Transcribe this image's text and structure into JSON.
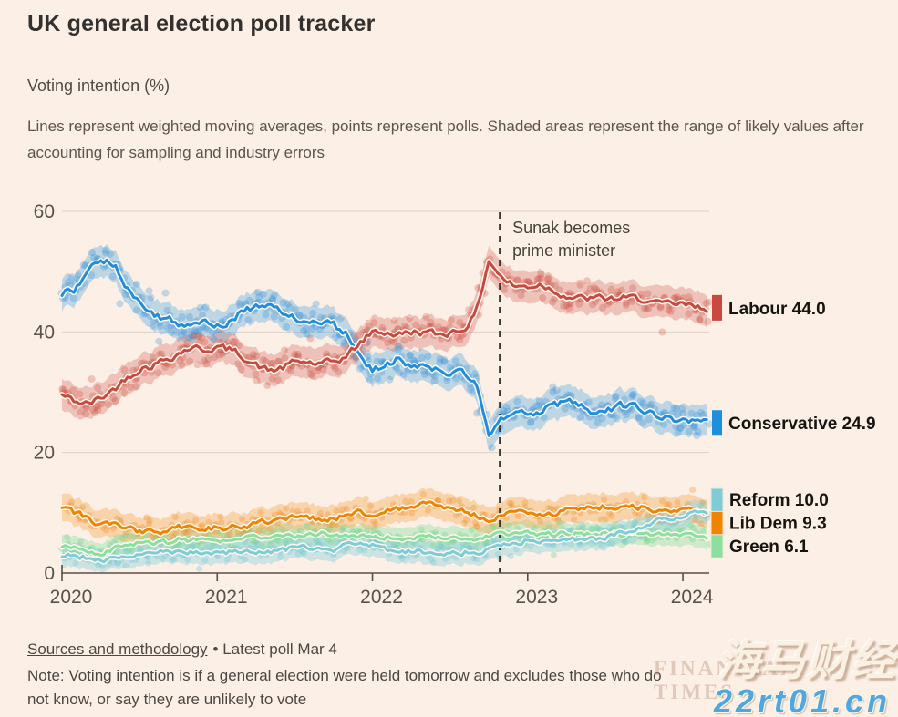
{
  "header": {
    "title": "UK general election poll tracker",
    "subtitle": "Voting intention (%)",
    "description": "Lines represent weighted moving averages, points represent polls. Shaded areas represent the range of likely values after accounting for sampling and industry errors"
  },
  "chart": {
    "background": "#fcefe5",
    "grid_color": "#ddd2c7",
    "axis_color": "#56504a",
    "text_color": "#57524c",
    "legend_text_color": "#16140f",
    "ylim": [
      0,
      60
    ],
    "xlim": [
      2020.0,
      2024.17
    ],
    "yticks": [
      0,
      20,
      40,
      60
    ],
    "xticks": [
      2020,
      2021,
      2022,
      2023,
      2024
    ],
    "annotation": {
      "x": 2022.82,
      "line1": "Sunak becomes",
      "line2": "prime minister",
      "line_color": "#3a3733",
      "text_color": "#474239"
    }
  },
  "chart_data": {
    "type": "line",
    "title": "UK general election poll tracker",
    "subtitle": "Voting intention (%)",
    "xlabel": "",
    "ylabel": "Voting intention (%)",
    "x": [
      2020.0,
      2020.083,
      2020.167,
      2020.25,
      2020.333,
      2020.417,
      2020.5,
      2020.583,
      2020.667,
      2020.75,
      2020.833,
      2020.917,
      2021.0,
      2021.083,
      2021.167,
      2021.25,
      2021.333,
      2021.417,
      2021.5,
      2021.583,
      2021.667,
      2021.75,
      2021.833,
      2021.917,
      2022.0,
      2022.083,
      2022.167,
      2022.25,
      2022.333,
      2022.417,
      2022.5,
      2022.583,
      2022.667,
      2022.75,
      2022.833,
      2022.917,
      2023.0,
      2023.083,
      2023.167,
      2023.25,
      2023.333,
      2023.417,
      2023.5,
      2023.583,
      2023.667,
      2023.75,
      2023.833,
      2023.917,
      2024.0,
      2024.083,
      2024.167
    ],
    "series": [
      {
        "name": "Labour",
        "label": "Labour 44.0",
        "latest": 44.0,
        "color": "#c9493e",
        "band_color": "rgba(205,90,78,0.30)",
        "dot_color": "rgba(203,77,66,0.28)",
        "band": 2.6,
        "wiggle": 0.5,
        "spread": 2.0,
        "dot_r": 4,
        "values": [
          29.5,
          28.5,
          28,
          29,
          30.5,
          32.5,
          34,
          34.5,
          35.5,
          36.5,
          37.5,
          37,
          37.5,
          37,
          36,
          34.5,
          33.5,
          34,
          35,
          35,
          34.5,
          35,
          36,
          38,
          40,
          40,
          39.5,
          40,
          40,
          39.5,
          40,
          40.5,
          43,
          52,
          49,
          47.5,
          47.5,
          48,
          47,
          46,
          45.5,
          45.5,
          45.5,
          45.5,
          45.5,
          45.5,
          44.5,
          44.5,
          44.5,
          44,
          44
        ]
      },
      {
        "name": "Conservative",
        "label": "Conservative 24.9",
        "latest": 24.9,
        "color": "#1e8fdf",
        "band_color": "rgba(90,170,225,0.38)",
        "dot_color": "rgba(60,150,215,0.30)",
        "band": 2.6,
        "wiggle": 0.5,
        "spread": 2.0,
        "dot_r": 4,
        "values": [
          46.5,
          47,
          50,
          52.5,
          51.5,
          47.5,
          44.5,
          43,
          42,
          41.5,
          41.5,
          42,
          41,
          42,
          43.5,
          44,
          44,
          43.5,
          42.5,
          42,
          41.5,
          41,
          39.5,
          36.5,
          33.5,
          34.5,
          35.5,
          34.5,
          34.5,
          34,
          33.5,
          33.5,
          31,
          22.5,
          25.5,
          26,
          26.5,
          27,
          27.5,
          28.5,
          28,
          27,
          26.5,
          27.5,
          28,
          26.5,
          26,
          25.5,
          25.5,
          25,
          24.9
        ]
      },
      {
        "name": "Reform",
        "label": "Reform 10.0",
        "latest": 10.0,
        "color": "#7fccd9",
        "band_color": "rgba(140,210,222,0.42)",
        "dot_color": "rgba(120,200,215,0.35)",
        "band": 1.9,
        "wiggle": 0.35,
        "spread": 1.3,
        "dot_r": 3.5,
        "values": [
          3,
          3,
          2.5,
          2,
          2.5,
          3,
          3,
          3,
          3.5,
          3.5,
          3.5,
          3.5,
          3.5,
          3.5,
          3.5,
          3.5,
          3.5,
          4,
          4,
          4,
          4,
          4,
          4.5,
          4.5,
          4.5,
          4,
          3.5,
          3.5,
          3.5,
          3.5,
          3.5,
          3.5,
          3.5,
          4,
          4.5,
          5,
          5.5,
          5.5,
          6,
          5.5,
          5.5,
          5.5,
          6,
          6.5,
          7,
          7.5,
          8.5,
          9,
          9.5,
          10,
          10
        ]
      },
      {
        "name": "Lib Dem",
        "label": "Lib Dem 9.3",
        "latest": 9.3,
        "color": "#ef8400",
        "band_color": "rgba(243,160,60,0.35)",
        "dot_color": "rgba(240,140,30,0.30)",
        "band": 2.3,
        "wiggle": 0.4,
        "spread": 1.5,
        "dot_r": 3.5,
        "values": [
          11,
          10,
          9,
          8,
          8,
          7.5,
          7,
          7,
          7,
          7.5,
          7.5,
          7.5,
          7.5,
          7.5,
          8,
          8,
          8.5,
          9,
          9,
          9,
          9,
          9,
          9.5,
          10,
          10,
          10.5,
          10.5,
          11,
          11.5,
          11.5,
          11,
          10.5,
          9.5,
          9,
          9.5,
          10,
          10,
          10,
          10,
          10.5,
          10.5,
          11,
          11,
          11,
          11,
          11,
          10.5,
          10.5,
          10.5,
          10,
          9.3
        ]
      },
      {
        "name": "Green",
        "label": "Green 6.1",
        "latest": 6.1,
        "color": "#8ce09f",
        "band_color": "rgba(140,225,165,0.40)",
        "dot_color": "rgba(120,215,145,0.35)",
        "band": 1.9,
        "wiggle": 0.35,
        "spread": 1.3,
        "dot_r": 3.5,
        "values": [
          4.5,
          4,
          3.5,
          3.5,
          4,
          4.5,
          5,
          5,
          5,
          5.5,
          5.5,
          5.5,
          5.5,
          5.5,
          6,
          6,
          6,
          6,
          6,
          6.5,
          6.5,
          6.5,
          6,
          6,
          6,
          6,
          6,
          6,
          6,
          6,
          6,
          5.5,
          5.5,
          6,
          6.5,
          6.5,
          6.5,
          6.5,
          6.5,
          6.5,
          6.5,
          6.5,
          6.5,
          6.5,
          6.5,
          6.5,
          6.5,
          6.5,
          6.5,
          6.3,
          6.1
        ]
      }
    ],
    "legend_position": "right",
    "grid": "horizontal"
  },
  "footer": {
    "sources_link": "Sources and methodology",
    "latest_poll": "• Latest poll Mar 4",
    "note": "Note: Voting intention is if a general election were held tomorrow and excludes those who do not know, or say they are unlikely to vote"
  },
  "watermark": {
    "site_name": "海马财经",
    "brand": "FINANCIAL TIMES",
    "site_url": "22rt01.cn"
  }
}
